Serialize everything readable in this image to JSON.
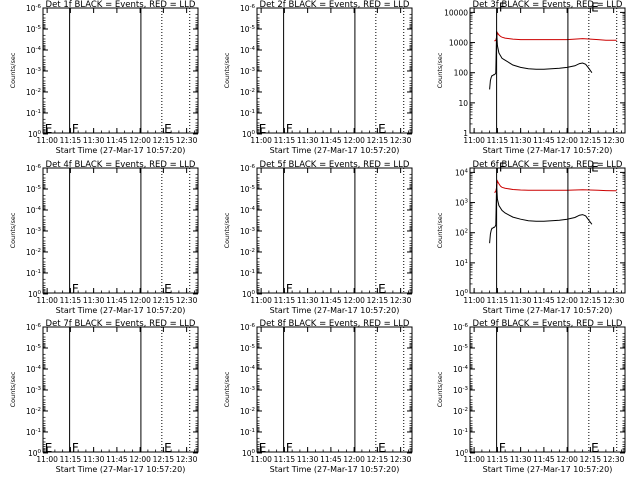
{
  "chart_data": [
    {
      "type": "line",
      "title": "Det 1f BLACK = Events, RED = LLD",
      "ylabel": "Counts/sec",
      "xlabel": "Start Time (27-Mar-17 10:57:20)",
      "xticks": [
        "11:00",
        "11:15",
        "11:30",
        "11:45",
        "12:00",
        "12:15",
        "12:30"
      ],
      "xlim": [
        "10:57:20",
        "12:37:20"
      ],
      "yscale": "log",
      "ylim": [
        0.9,
        1e-06
      ],
      "yticks": [
        "10^0",
        "10^-1",
        "10^-2",
        "10^-3",
        "10^-4",
        "10^-5",
        "10^-6"
      ],
      "marks": [
        {
          "label": "E",
          "x": "10:58:30",
          "y": "10^0"
        },
        {
          "label": "F",
          "x": "11:16:00",
          "y": "10^0"
        },
        {
          "label": "E",
          "x": "12:15:30",
          "y": "10^0"
        }
      ],
      "vlines": [
        {
          "x": "11:14:30",
          "style": "solid"
        },
        {
          "x": "12:00:30",
          "style": "solid"
        },
        {
          "x": "12:14:00",
          "style": "dotted"
        },
        {
          "x": "12:32:00",
          "style": "dotted"
        }
      ],
      "series": []
    },
    {
      "type": "line",
      "title": "Det 2f BLACK = Events, RED = LLD",
      "ylabel": "Counts/sec",
      "xlabel": "Start Time (27-Mar-17 10:57:20)",
      "xticks": [
        "11:00",
        "11:15",
        "11:30",
        "11:45",
        "12:00",
        "12:15",
        "12:30"
      ],
      "xlim": [
        "10:57:20",
        "12:37:20"
      ],
      "yscale": "log",
      "ylim": [
        0.9,
        1e-06
      ],
      "yticks": [
        "10^0",
        "10^-1",
        "10^-2",
        "10^-3",
        "10^-4",
        "10^-5",
        "10^-6"
      ],
      "marks": [
        {
          "label": "E",
          "x": "10:58:30",
          "y": "10^0"
        },
        {
          "label": "F",
          "x": "11:16:00",
          "y": "10^0"
        },
        {
          "label": "E",
          "x": "12:15:30",
          "y": "10^0"
        }
      ],
      "vlines": [
        {
          "x": "11:14:30",
          "style": "solid"
        },
        {
          "x": "12:00:30",
          "style": "solid"
        },
        {
          "x": "12:14:00",
          "style": "dotted"
        },
        {
          "x": "12:32:00",
          "style": "dotted"
        }
      ],
      "series": []
    },
    {
      "type": "line",
      "title": "Det 3f BLACK = Events, RED = LLD",
      "ylabel": "Counts/sec",
      "xlabel": "Start Time (27-Mar-17 10:57:20)",
      "xticks": [
        "11:00",
        "11:15",
        "11:30",
        "11:45",
        "12:00",
        "12:15",
        "12:30"
      ],
      "xlim": [
        "10:57:20",
        "12:37:20"
      ],
      "yscale": "log",
      "ylim": [
        1,
        14000
      ],
      "yticks": [
        "1",
        "10",
        "100",
        "1000",
        "10000"
      ],
      "marks": [
        {
          "label": "F",
          "x": "11:16:00",
          "y": "10000"
        },
        {
          "label": "E",
          "x": "12:15:30",
          "y": "10000"
        }
      ],
      "vlines": [
        {
          "x": "11:14:30",
          "style": "solid"
        },
        {
          "x": "12:00:30",
          "style": "solid"
        },
        {
          "x": "12:14:00",
          "style": "dotted"
        },
        {
          "x": "12:32:00",
          "style": "dotted"
        }
      ],
      "series": [
        {
          "color": "#cc0000",
          "x": [
            "11:13",
            "11:13:30",
            "11:14",
            "11:14:30",
            "11:15",
            "11:16",
            "11:17",
            "11:18",
            "11:20",
            "11:25",
            "11:30",
            "11:35",
            "11:40",
            "11:45",
            "11:50",
            "11:55",
            "12:00",
            "12:05",
            "12:10",
            "12:15",
            "12:20",
            "12:25",
            "12:30",
            "12:32"
          ],
          "y": [
            1150,
            1150,
            1200,
            1500,
            2100,
            1800,
            1600,
            1500,
            1400,
            1300,
            1250,
            1250,
            1250,
            1250,
            1250,
            1250,
            1250,
            1300,
            1350,
            1300,
            1250,
            1200,
            1200,
            1200
          ]
        },
        {
          "color": "#000000",
          "x": [
            "11:10",
            "11:10:30",
            "11:11",
            "11:11:30",
            "11:12",
            "11:12:30",
            "11:13",
            "11:13:30",
            "11:14",
            "11:14:30",
            "11:15",
            "11:16",
            "11:18",
            "11:20",
            "11:25",
            "11:30",
            "11:35",
            "11:40",
            "11:45",
            "11:50",
            "11:55",
            "12:00",
            "12:05",
            "12:08",
            "12:10",
            "12:12",
            "12:14",
            "12:16"
          ],
          "y": [
            28,
            55,
            70,
            80,
            80,
            85,
            85,
            90,
            100,
            2400,
            800,
            450,
            300,
            260,
            180,
            150,
            135,
            130,
            130,
            135,
            140,
            150,
            170,
            200,
            210,
            190,
            140,
            100
          ]
        }
      ]
    },
    {
      "type": "line",
      "title": "Det 4f BLACK = Events, RED = LLD",
      "ylabel": "Counts/sec",
      "xlabel": "Start Time (27-Mar-17 10:57:20)",
      "xticks": [
        "11:00",
        "11:15",
        "11:30",
        "11:45",
        "12:00",
        "12:15",
        "12:30"
      ],
      "xlim": [
        "10:57:20",
        "12:37:20"
      ],
      "yscale": "log",
      "ylim": [
        0.9,
        1e-06
      ],
      "yticks": [
        "10^0",
        "10^-1",
        "10^-2",
        "10^-3",
        "10^-4",
        "10^-5",
        "10^-6"
      ],
      "marks": [
        {
          "label": "F",
          "x": "11:16:00",
          "y": "10^0"
        },
        {
          "label": "E",
          "x": "12:15:30",
          "y": "10^0"
        }
      ],
      "vlines": [
        {
          "x": "11:14:30",
          "style": "solid"
        },
        {
          "x": "12:00:30",
          "style": "solid"
        },
        {
          "x": "12:14:00",
          "style": "dotted"
        },
        {
          "x": "12:32:00",
          "style": "dotted"
        }
      ],
      "series": []
    },
    {
      "type": "line",
      "title": "Det 5f BLACK = Events, RED = LLD",
      "ylabel": "Counts/sec",
      "xlabel": "Start Time (27-Mar-17 10:57:20)",
      "xticks": [
        "11:00",
        "11:15",
        "11:30",
        "11:45",
        "12:00",
        "12:15",
        "12:30"
      ],
      "xlim": [
        "10:57:20",
        "12:37:20"
      ],
      "yscale": "log",
      "ylim": [
        0.9,
        1e-06
      ],
      "yticks": [
        "10^0",
        "10^-1",
        "10^-2",
        "10^-3",
        "10^-4",
        "10^-5",
        "10^-6"
      ],
      "marks": [
        {
          "label": "F",
          "x": "11:16:00",
          "y": "10^0"
        },
        {
          "label": "E",
          "x": "12:15:30",
          "y": "10^0"
        }
      ],
      "vlines": [
        {
          "x": "11:14:30",
          "style": "solid"
        },
        {
          "x": "12:00:30",
          "style": "solid"
        },
        {
          "x": "12:14:00",
          "style": "dotted"
        },
        {
          "x": "12:32:00",
          "style": "dotted"
        }
      ],
      "series": []
    },
    {
      "type": "line",
      "title": "Det 6f BLACK = Events, RED = LLD",
      "ylabel": "Counts/sec",
      "xlabel": "Start Time (27-Mar-17 10:57:20)",
      "xticks": [
        "11:00",
        "11:15",
        "11:30",
        "11:45",
        "12:00",
        "12:15",
        "12:30"
      ],
      "xlim": [
        "10:57:20",
        "12:37:20"
      ],
      "yscale": "log",
      "ylim": [
        1,
        14000
      ],
      "yticks": [
        "10^0",
        "10^1",
        "10^2",
        "10^3",
        "10^4"
      ],
      "marks": [
        {
          "label": "F",
          "x": "11:16:00",
          "y": "10^4"
        },
        {
          "label": "E",
          "x": "12:15:30",
          "y": "10^4"
        }
      ],
      "vlines": [
        {
          "x": "11:14:30",
          "style": "solid"
        },
        {
          "x": "12:00:30",
          "style": "solid"
        },
        {
          "x": "12:14:00",
          "style": "dotted"
        },
        {
          "x": "12:32:00",
          "style": "dotted"
        }
      ],
      "series": [
        {
          "color": "#cc0000",
          "x": [
            "11:13",
            "11:13:30",
            "11:14",
            "11:14:30",
            "11:15",
            "11:16",
            "11:17",
            "11:18",
            "11:20",
            "11:25",
            "11:30",
            "11:35",
            "11:40",
            "11:45",
            "11:50",
            "11:55",
            "12:00",
            "12:05",
            "12:10",
            "12:15",
            "12:20",
            "12:25",
            "12:30",
            "12:32"
          ],
          "y": [
            2200,
            2200,
            2400,
            3200,
            5200,
            4200,
            3500,
            3200,
            3000,
            2700,
            2600,
            2550,
            2550,
            2550,
            2550,
            2550,
            2550,
            2600,
            2650,
            2600,
            2550,
            2500,
            2450,
            2450
          ]
        },
        {
          "color": "#000000",
          "x": [
            "11:10",
            "11:10:30",
            "11:11",
            "11:11:30",
            "11:12",
            "11:12:30",
            "11:13",
            "11:13:30",
            "11:14",
            "11:14:30",
            "11:15",
            "11:16",
            "11:18",
            "11:20",
            "11:25",
            "11:30",
            "11:35",
            "11:40",
            "11:45",
            "11:50",
            "11:55",
            "12:00",
            "12:05",
            "12:08",
            "12:10",
            "12:12",
            "12:14",
            "12:16"
          ],
          "y": [
            45,
            90,
            120,
            140,
            140,
            150,
            150,
            160,
            180,
            4000,
            1300,
            800,
            550,
            450,
            330,
            280,
            250,
            240,
            240,
            250,
            260,
            280,
            320,
            380,
            400,
            360,
            260,
            190
          ]
        }
      ]
    },
    {
      "type": "line",
      "title": "Det 7f BLACK = Events, RED = LLD",
      "ylabel": "Counts/sec",
      "xlabel": "Start Time (27-Mar-17 10:57:20)",
      "xticks": [
        "11:00",
        "11:15",
        "11:30",
        "11:45",
        "12:00",
        "12:15",
        "12:30"
      ],
      "xlim": [
        "10:57:20",
        "12:37:20"
      ],
      "yscale": "log",
      "ylim": [
        0.9,
        1e-06
      ],
      "yticks": [
        "10^0",
        "10^-1",
        "10^-2",
        "10^-3",
        "10^-4",
        "10^-5",
        "10^-6"
      ],
      "marks": [
        {
          "label": "E",
          "x": "10:58:30",
          "y": "10^0"
        },
        {
          "label": "F",
          "x": "11:16:00",
          "y": "10^0"
        },
        {
          "label": "E",
          "x": "12:15:30",
          "y": "10^0"
        }
      ],
      "vlines": [
        {
          "x": "11:14:30",
          "style": "solid"
        },
        {
          "x": "12:00:30",
          "style": "solid"
        },
        {
          "x": "12:14:00",
          "style": "dotted"
        },
        {
          "x": "12:32:00",
          "style": "dotted"
        }
      ],
      "series": []
    },
    {
      "type": "line",
      "title": "Det 8f BLACK = Events, RED = LLD",
      "ylabel": "Counts/sec",
      "xlabel": "Start Time (27-Mar-17 10:57:20)",
      "xticks": [
        "11:00",
        "11:15",
        "11:30",
        "11:45",
        "12:00",
        "12:15",
        "12:30"
      ],
      "xlim": [
        "10:57:20",
        "12:37:20"
      ],
      "yscale": "log",
      "ylim": [
        0.9,
        1e-06
      ],
      "yticks": [
        "10^0",
        "10^-1",
        "10^-2",
        "10^-3",
        "10^-4",
        "10^-5",
        "10^-6"
      ],
      "marks": [
        {
          "label": "E",
          "x": "10:58:30",
          "y": "10^0"
        },
        {
          "label": "F",
          "x": "11:16:00",
          "y": "10^0"
        },
        {
          "label": "E",
          "x": "12:15:30",
          "y": "10^0"
        }
      ],
      "vlines": [
        {
          "x": "11:14:30",
          "style": "solid"
        },
        {
          "x": "12:00:30",
          "style": "solid"
        },
        {
          "x": "12:14:00",
          "style": "dotted"
        },
        {
          "x": "12:32:00",
          "style": "dotted"
        }
      ],
      "series": []
    },
    {
      "type": "line",
      "title": "Det 9f BLACK = Events, RED = LLD",
      "ylabel": "Counts/sec",
      "xlabel": "Start Time (27-Mar-17 10:57:20)",
      "xticks": [
        "11:00",
        "11:15",
        "11:30",
        "11:45",
        "12:00",
        "12:15",
        "12:30"
      ],
      "xlim": [
        "10:57:20",
        "12:37:20"
      ],
      "yscale": "log",
      "ylim": [
        0.9,
        1e-06
      ],
      "yticks": [
        "10^0",
        "10^-1",
        "10^-2",
        "10^-3",
        "10^-4",
        "10^-5",
        "10^-6"
      ],
      "marks": [
        {
          "label": "F",
          "x": "11:16:00",
          "y": "10^0"
        },
        {
          "label": "E",
          "x": "12:15:30",
          "y": "10^0"
        }
      ],
      "vlines": [
        {
          "x": "11:14:30",
          "style": "solid"
        },
        {
          "x": "12:00:30",
          "style": "solid"
        },
        {
          "x": "12:14:00",
          "style": "dotted"
        },
        {
          "x": "12:32:00",
          "style": "dotted"
        }
      ],
      "series": []
    }
  ]
}
